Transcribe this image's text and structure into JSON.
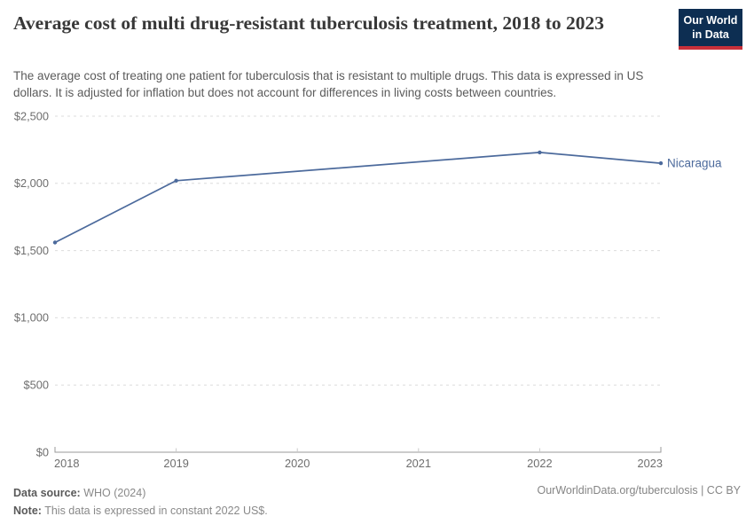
{
  "header": {
    "title": "Average cost of multi drug-resistant tuberculosis treatment, 2018 to 2023",
    "subtitle": "The average cost of treating one patient for tuberculosis that is resistant to multiple drugs. This data is expressed in US dollars. It is adjusted for inflation but does not account for differences in living costs between countries."
  },
  "logo": {
    "line1": "Our World",
    "line2": "in Data",
    "bg_color": "#0d2e52",
    "bar_color": "#c8303a"
  },
  "chart_data": {
    "type": "line",
    "title": "Average cost of multi drug-resistant tuberculosis treatment, 2018 to 2023",
    "xlabel": "",
    "ylabel": "",
    "xlim": [
      2018,
      2023
    ],
    "ylim": [
      0,
      2500
    ],
    "grid": "horizontal-dashed",
    "legend": "line-end-label",
    "line_color": "#4c6a9c",
    "series": [
      {
        "name": "Nicaragua",
        "x": [
          2018,
          2019,
          2022,
          2023
        ],
        "values": [
          1560,
          2020,
          2230,
          2150
        ]
      }
    ],
    "missing_years": [
      2020,
      2021
    ],
    "xticks": [
      {
        "value": 2018,
        "label": "2018"
      },
      {
        "value": 2019,
        "label": "2019"
      },
      {
        "value": 2020,
        "label": "2020"
      },
      {
        "value": 2021,
        "label": "2021"
      },
      {
        "value": 2022,
        "label": "2022"
      },
      {
        "value": 2023,
        "label": "2023"
      }
    ],
    "yticks": [
      {
        "value": 0,
        "label": "$0"
      },
      {
        "value": 500,
        "label": "$500"
      },
      {
        "value": 1000,
        "label": "$1,000"
      },
      {
        "value": 1500,
        "label": "$1,500"
      },
      {
        "value": 2000,
        "label": "$2,000"
      },
      {
        "value": 2500,
        "label": "$2,500"
      }
    ]
  },
  "footer": {
    "source_label": "Data source:",
    "source_value": "WHO (2024)",
    "note_label": "Note:",
    "note_value": "This data is expressed in constant 2022 US$.",
    "url": "OurWorldinData.org/tuberculosis | CC BY"
  }
}
